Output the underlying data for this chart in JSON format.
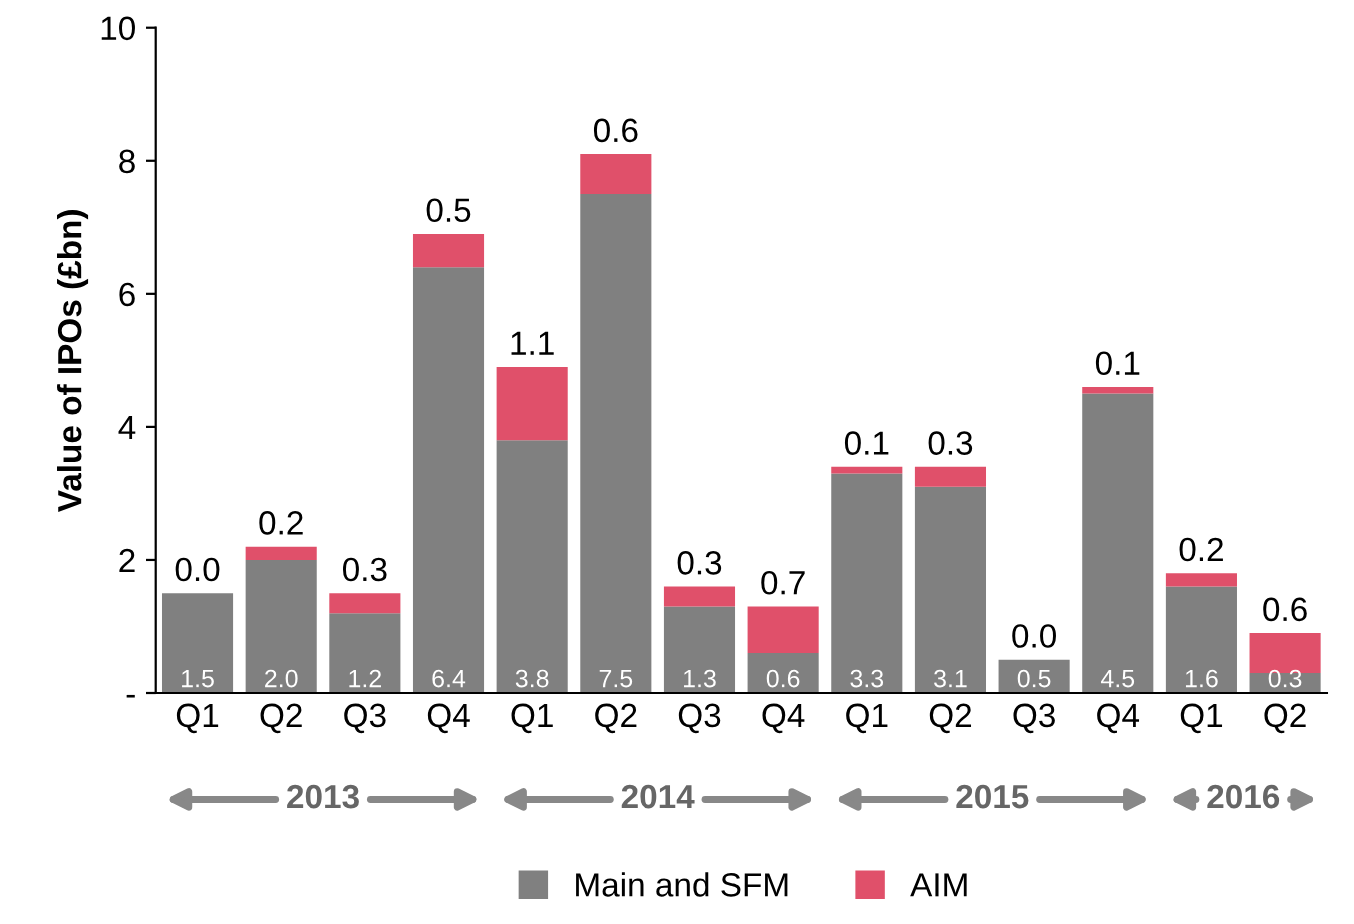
{
  "chart_data": {
    "type": "bar",
    "stacked": true,
    "ylabel": "Value of IPOs (£bn)",
    "categories": [
      "Q1",
      "Q2",
      "Q3",
      "Q4",
      "Q1",
      "Q2",
      "Q3",
      "Q4",
      "Q1",
      "Q2",
      "Q3",
      "Q4",
      "Q1",
      "Q2"
    ],
    "series": [
      {
        "name": "Main and SFM",
        "color": "#808080",
        "values": [
          1.5,
          2.0,
          1.2,
          6.4,
          3.8,
          7.5,
          1.3,
          0.6,
          3.3,
          3.1,
          0.5,
          4.5,
          1.6,
          0.3
        ],
        "value_labels": [
          "1.5",
          "2.0",
          "1.2",
          "6.4",
          "3.8",
          "7.5",
          "1.3",
          "0.6",
          "3.3",
          "3.1",
          "0.5",
          "4.5",
          "1.6",
          "0.3"
        ]
      },
      {
        "name": "AIM",
        "color": "#e0506a",
        "values": [
          0.0,
          0.2,
          0.3,
          0.5,
          1.1,
          0.6,
          0.3,
          0.7,
          0.1,
          0.3,
          0.0,
          0.1,
          0.2,
          0.6
        ],
        "value_labels": [
          "0.0",
          "0.2",
          "0.3",
          "0.5",
          "1.1",
          "0.6",
          "0.3",
          "0.7",
          "0.1",
          "0.3",
          "0.0",
          "0.1",
          "0.2",
          "0.6"
        ]
      }
    ],
    "ylim": [
      0,
      10
    ],
    "yticks": [
      {
        "value": 0,
        "label": "-"
      },
      2,
      4,
      6,
      8,
      10
    ],
    "legend": "bottom",
    "annotations": [
      "2013",
      "2014",
      "2015",
      "2016"
    ]
  }
}
